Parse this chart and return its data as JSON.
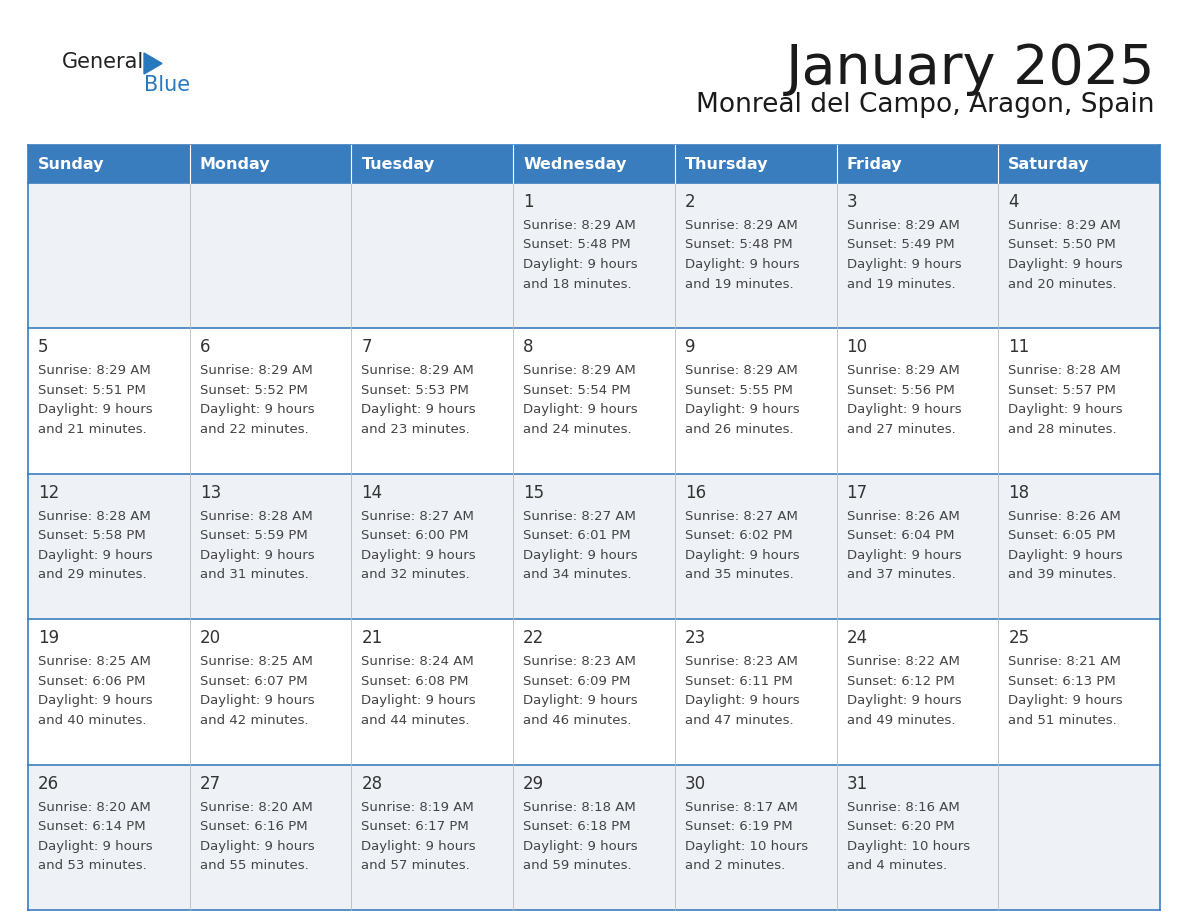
{
  "title": "January 2025",
  "subtitle": "Monreal del Campo, Aragon, Spain",
  "days_of_week": [
    "Sunday",
    "Monday",
    "Tuesday",
    "Wednesday",
    "Thursday",
    "Friday",
    "Saturday"
  ],
  "header_bg": "#3a7dbf",
  "header_text": "#ffffff",
  "row_bg_odd": "#eef2f7",
  "row_bg_even": "#ffffff",
  "cell_border_color": "#3a7dbf",
  "text_color": "#444444",
  "day_num_color": "#333333",
  "logo_general_color": "#222222",
  "logo_blue_color": "#2878be",
  "calendar_data": [
    [
      {
        "day": null,
        "sunrise": null,
        "sunset": null,
        "daylight_h": null,
        "daylight_m": null
      },
      {
        "day": null,
        "sunrise": null,
        "sunset": null,
        "daylight_h": null,
        "daylight_m": null
      },
      {
        "day": null,
        "sunrise": null,
        "sunset": null,
        "daylight_h": null,
        "daylight_m": null
      },
      {
        "day": 1,
        "sunrise": "8:29 AM",
        "sunset": "5:48 PM",
        "daylight_h": "9 hours",
        "daylight_m": "18 minutes."
      },
      {
        "day": 2,
        "sunrise": "8:29 AM",
        "sunset": "5:48 PM",
        "daylight_h": "9 hours",
        "daylight_m": "19 minutes."
      },
      {
        "day": 3,
        "sunrise": "8:29 AM",
        "sunset": "5:49 PM",
        "daylight_h": "9 hours",
        "daylight_m": "19 minutes."
      },
      {
        "day": 4,
        "sunrise": "8:29 AM",
        "sunset": "5:50 PM",
        "daylight_h": "9 hours",
        "daylight_m": "20 minutes."
      }
    ],
    [
      {
        "day": 5,
        "sunrise": "8:29 AM",
        "sunset": "5:51 PM",
        "daylight_h": "9 hours",
        "daylight_m": "21 minutes."
      },
      {
        "day": 6,
        "sunrise": "8:29 AM",
        "sunset": "5:52 PM",
        "daylight_h": "9 hours",
        "daylight_m": "22 minutes."
      },
      {
        "day": 7,
        "sunrise": "8:29 AM",
        "sunset": "5:53 PM",
        "daylight_h": "9 hours",
        "daylight_m": "23 minutes."
      },
      {
        "day": 8,
        "sunrise": "8:29 AM",
        "sunset": "5:54 PM",
        "daylight_h": "9 hours",
        "daylight_m": "24 minutes."
      },
      {
        "day": 9,
        "sunrise": "8:29 AM",
        "sunset": "5:55 PM",
        "daylight_h": "9 hours",
        "daylight_m": "26 minutes."
      },
      {
        "day": 10,
        "sunrise": "8:29 AM",
        "sunset": "5:56 PM",
        "daylight_h": "9 hours",
        "daylight_m": "27 minutes."
      },
      {
        "day": 11,
        "sunrise": "8:28 AM",
        "sunset": "5:57 PM",
        "daylight_h": "9 hours",
        "daylight_m": "28 minutes."
      }
    ],
    [
      {
        "day": 12,
        "sunrise": "8:28 AM",
        "sunset": "5:58 PM",
        "daylight_h": "9 hours",
        "daylight_m": "29 minutes."
      },
      {
        "day": 13,
        "sunrise": "8:28 AM",
        "sunset": "5:59 PM",
        "daylight_h": "9 hours",
        "daylight_m": "31 minutes."
      },
      {
        "day": 14,
        "sunrise": "8:27 AM",
        "sunset": "6:00 PM",
        "daylight_h": "9 hours",
        "daylight_m": "32 minutes."
      },
      {
        "day": 15,
        "sunrise": "8:27 AM",
        "sunset": "6:01 PM",
        "daylight_h": "9 hours",
        "daylight_m": "34 minutes."
      },
      {
        "day": 16,
        "sunrise": "8:27 AM",
        "sunset": "6:02 PM",
        "daylight_h": "9 hours",
        "daylight_m": "35 minutes."
      },
      {
        "day": 17,
        "sunrise": "8:26 AM",
        "sunset": "6:04 PM",
        "daylight_h": "9 hours",
        "daylight_m": "37 minutes."
      },
      {
        "day": 18,
        "sunrise": "8:26 AM",
        "sunset": "6:05 PM",
        "daylight_h": "9 hours",
        "daylight_m": "39 minutes."
      }
    ],
    [
      {
        "day": 19,
        "sunrise": "8:25 AM",
        "sunset": "6:06 PM",
        "daylight_h": "9 hours",
        "daylight_m": "40 minutes."
      },
      {
        "day": 20,
        "sunrise": "8:25 AM",
        "sunset": "6:07 PM",
        "daylight_h": "9 hours",
        "daylight_m": "42 minutes."
      },
      {
        "day": 21,
        "sunrise": "8:24 AM",
        "sunset": "6:08 PM",
        "daylight_h": "9 hours",
        "daylight_m": "44 minutes."
      },
      {
        "day": 22,
        "sunrise": "8:23 AM",
        "sunset": "6:09 PM",
        "daylight_h": "9 hours",
        "daylight_m": "46 minutes."
      },
      {
        "day": 23,
        "sunrise": "8:23 AM",
        "sunset": "6:11 PM",
        "daylight_h": "9 hours",
        "daylight_m": "47 minutes."
      },
      {
        "day": 24,
        "sunrise": "8:22 AM",
        "sunset": "6:12 PM",
        "daylight_h": "9 hours",
        "daylight_m": "49 minutes."
      },
      {
        "day": 25,
        "sunrise": "8:21 AM",
        "sunset": "6:13 PM",
        "daylight_h": "9 hours",
        "daylight_m": "51 minutes."
      }
    ],
    [
      {
        "day": 26,
        "sunrise": "8:20 AM",
        "sunset": "6:14 PM",
        "daylight_h": "9 hours",
        "daylight_m": "53 minutes."
      },
      {
        "day": 27,
        "sunrise": "8:20 AM",
        "sunset": "6:16 PM",
        "daylight_h": "9 hours",
        "daylight_m": "55 minutes."
      },
      {
        "day": 28,
        "sunrise": "8:19 AM",
        "sunset": "6:17 PM",
        "daylight_h": "9 hours",
        "daylight_m": "57 minutes."
      },
      {
        "day": 29,
        "sunrise": "8:18 AM",
        "sunset": "6:18 PM",
        "daylight_h": "9 hours",
        "daylight_m": "59 minutes."
      },
      {
        "day": 30,
        "sunrise": "8:17 AM",
        "sunset": "6:19 PM",
        "daylight_h": "10 hours",
        "daylight_m": "2 minutes."
      },
      {
        "day": 31,
        "sunrise": "8:16 AM",
        "sunset": "6:20 PM",
        "daylight_h": "10 hours",
        "daylight_m": "4 minutes."
      },
      {
        "day": null,
        "sunrise": null,
        "sunset": null,
        "daylight_h": null,
        "daylight_m": null
      }
    ]
  ]
}
